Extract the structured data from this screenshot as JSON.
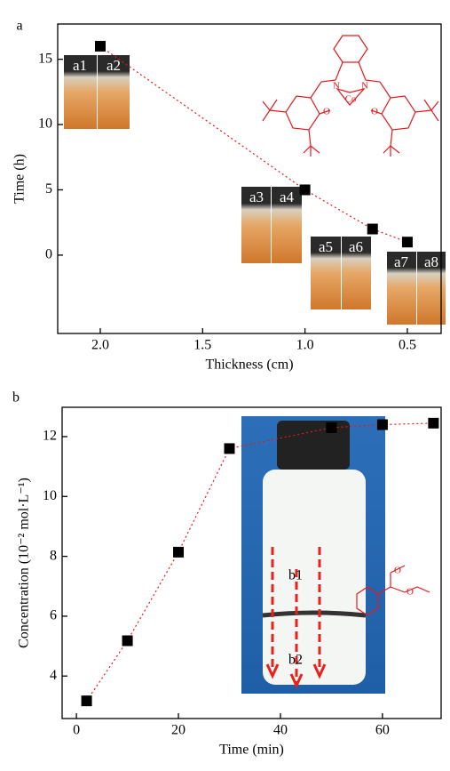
{
  "chart_data": [
    {
      "type": "line",
      "panel_label": "a",
      "x_label": "Thickness (cm)",
      "y_label": "Time (h)",
      "x": [
        2.0,
        1.0,
        0.67,
        0.5
      ],
      "values": [
        16,
        5,
        2,
        1
      ],
      "color": "#e41a1c",
      "marker_color": "#000000",
      "xlim": [
        2.208,
        0.335
      ],
      "ylim": [
        -6.0,
        17.7
      ],
      "xticks": [
        {
          "value": 2.0,
          "label": "2.0"
        },
        {
          "value": 1.5,
          "label": "1.5"
        },
        {
          "value": 1.0,
          "label": "1.0"
        },
        {
          "value": 0.5,
          "label": "0.5"
        }
      ],
      "yticks": [
        15,
        10,
        5,
        0
      ],
      "annotations": [
        "a1",
        "a2",
        "a3",
        "a4",
        "a5",
        "a6",
        "a7",
        "a8"
      ],
      "structure_labels": [
        "N",
        "N",
        "Co",
        "O",
        "O"
      ]
    },
    {
      "type": "line",
      "panel_label": "b",
      "x_label": "Time (min)",
      "y_label": "Concentration (10⁻² mol·L⁻¹)",
      "x": [
        2,
        10,
        20,
        30,
        50,
        60,
        70
      ],
      "values": [
        3.17,
        5.18,
        8.14,
        11.6,
        12.3,
        12.4,
        12.45
      ],
      "color": "#e41a1c",
      "marker_color": "#000000",
      "xlim": [
        -2.8,
        71.5
      ],
      "ylim": [
        2.58,
        12.98
      ],
      "xticks": [
        0,
        20,
        40,
        60
      ],
      "yticks": [
        4,
        6,
        8,
        10,
        12
      ],
      "annotations": [
        "b1",
        "b2"
      ],
      "structure_labels": [
        "O",
        "O"
      ]
    }
  ]
}
